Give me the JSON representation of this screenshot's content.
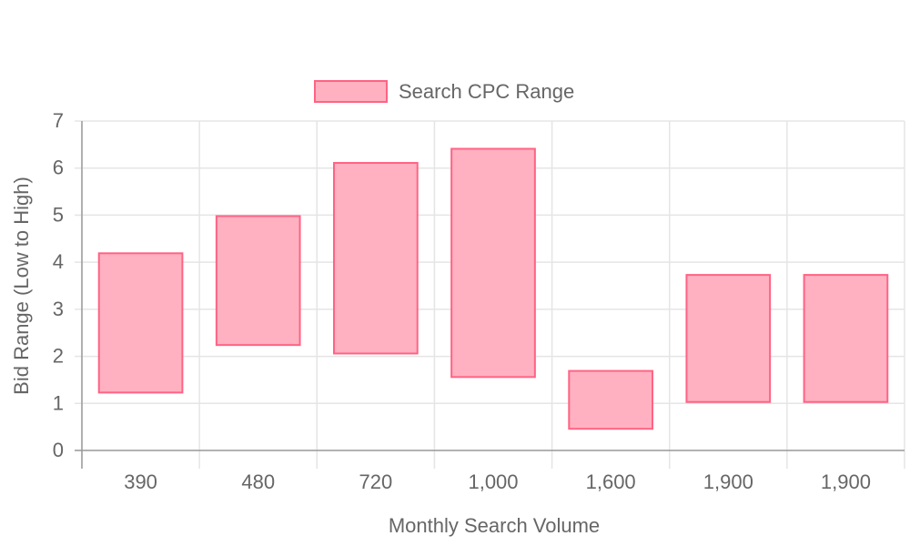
{
  "chart_data": {
    "type": "bar",
    "subtype": "floating-range",
    "categories": [
      "390",
      "480",
      "720",
      "1,000",
      "1,600",
      "1,900",
      "1,900"
    ],
    "series": [
      {
        "name": "Search CPC Range",
        "ranges": [
          [
            1.23,
            4.19
          ],
          [
            2.24,
            4.98
          ],
          [
            2.06,
            6.11
          ],
          [
            1.56,
            6.41
          ],
          [
            0.46,
            1.69
          ],
          [
            1.03,
            3.73
          ],
          [
            1.03,
            3.73
          ]
        ],
        "fill": "#ffb1c1",
        "stroke": "#ff6384"
      }
    ],
    "xlabel": "Monthly Search Volume",
    "ylabel": "Bid Range (Low to High)",
    "ylim": [
      0,
      7
    ],
    "yticks": [
      "0",
      "1",
      "2",
      "3",
      "4",
      "5",
      "6",
      "7"
    ],
    "grid": true,
    "legend": "top"
  },
  "colors": {
    "grid": "#e5e5e5",
    "axis": "#999999",
    "text": "#666666"
  }
}
